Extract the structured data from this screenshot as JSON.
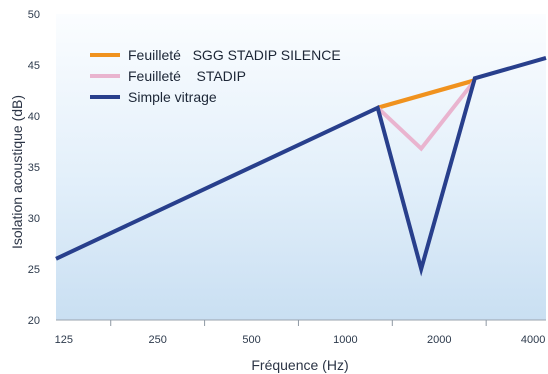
{
  "chart_data": {
    "type": "line",
    "xlabel": "Fréquence (Hz)",
    "ylabel": "Isolation acoustique (dB)",
    "x_scale": "log",
    "xlim": [
      118,
      4400
    ],
    "ylim": [
      20,
      50
    ],
    "x_ticks": [
      125,
      250,
      500,
      1000,
      2000,
      4000
    ],
    "x_tick_labels": [
      "125",
      "250",
      "500",
      "1000",
      "2000",
      "4000"
    ],
    "y_ticks": [
      20,
      25,
      30,
      35,
      40,
      45,
      50
    ],
    "y_tick_labels": [
      "20",
      "25",
      "30",
      "35",
      "40",
      "45",
      "50"
    ],
    "grid": false,
    "legend_position": "top-left",
    "series": [
      {
        "name": "Feuilleté   SGG STADIP SILENCE",
        "color": "#f0921e",
        "x": [
          1270,
          2600
        ],
        "y": [
          40.8,
          43.5
        ]
      },
      {
        "name": "Feuilleté    STADIP",
        "color": "#e9b4cf",
        "x": [
          1270,
          1750,
          2600
        ],
        "y": [
          40.8,
          36.8,
          43.5
        ]
      },
      {
        "name": "Simple vitrage",
        "color": "#283f8c",
        "x": [
          118,
          1270,
          1750,
          2600,
          4400
        ],
        "y": [
          26,
          40.8,
          25,
          43.7,
          45.7
        ]
      }
    ]
  }
}
